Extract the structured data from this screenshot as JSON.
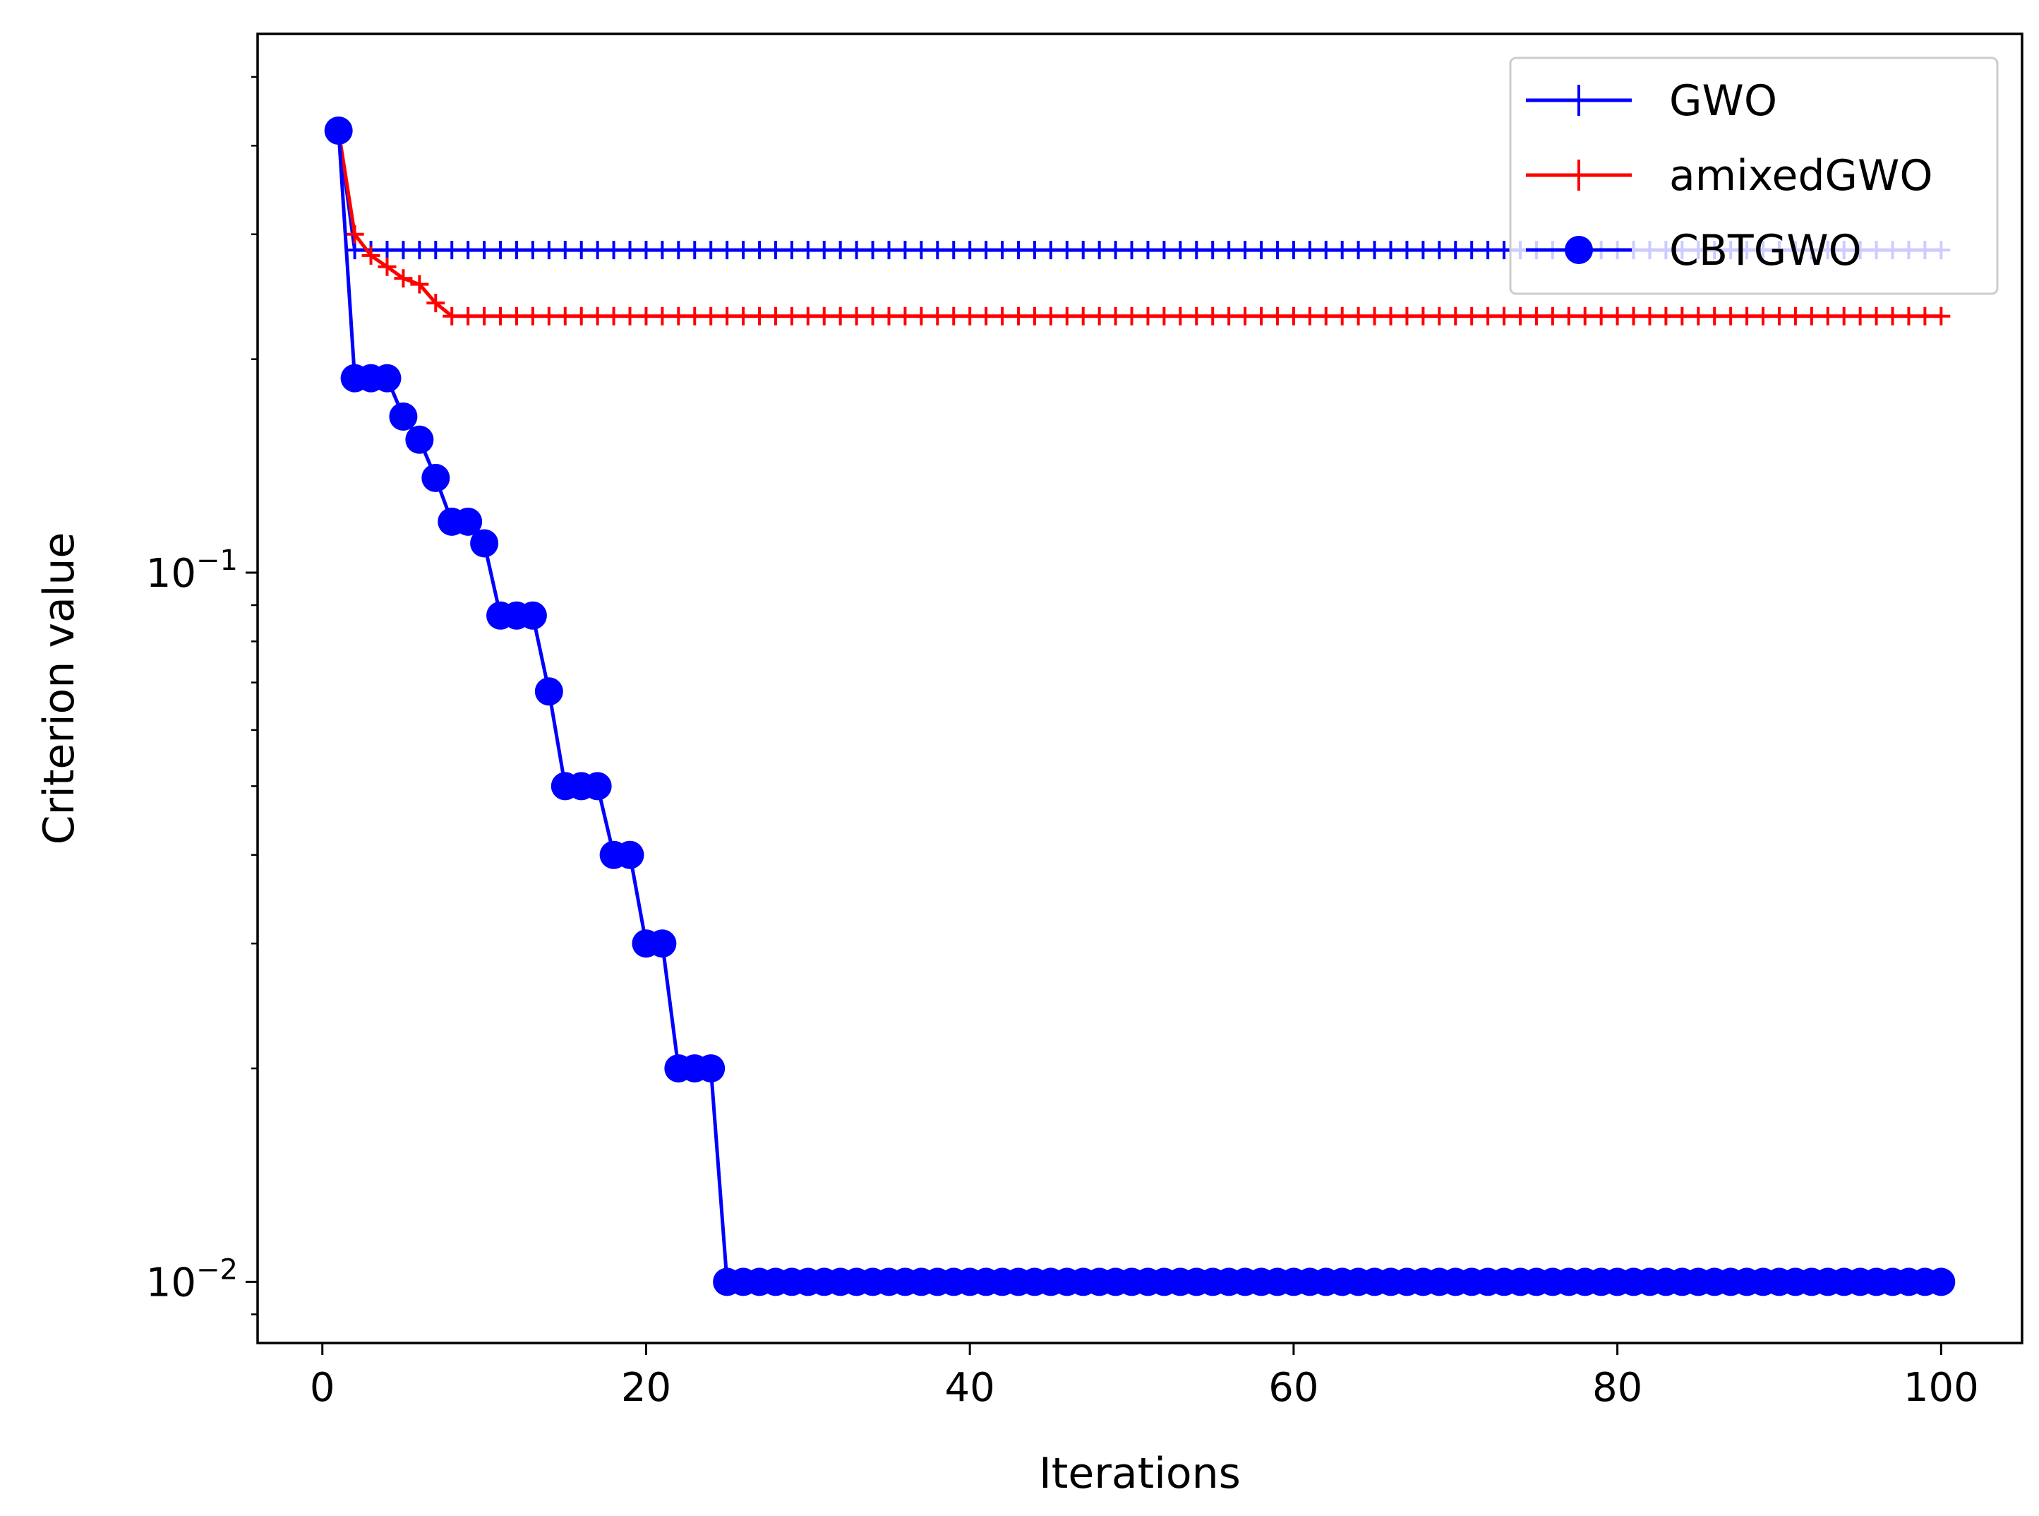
{
  "chart_data": {
    "type": "line",
    "title": "",
    "xlabel": "Iterations",
    "ylabel": "Criterion value",
    "yscale": "log",
    "xlim": [
      -4,
      105
    ],
    "ylim": [
      0.0082,
      0.575
    ],
    "xticks": [
      0,
      20,
      40,
      60,
      80,
      100
    ],
    "xtick_labels": [
      "0",
      "20",
      "40",
      "60",
      "80",
      "100"
    ],
    "yticks": [
      0.1,
      0.01
    ],
    "ytick_labels": [
      {
        "base": "10",
        "exp": "−1"
      },
      {
        "base": "10",
        "exp": "−2"
      }
    ],
    "legend_position": "top-right",
    "grid": false,
    "series": [
      {
        "name": "GWO",
        "color": "#0000ff",
        "marker": "plus",
        "steps": [
          [
            1,
            0.42
          ],
          [
            2,
            0.285
          ]
        ]
      },
      {
        "name": "amixedGWO",
        "color": "#ff0000",
        "marker": "plus",
        "steps": [
          [
            1,
            0.42
          ],
          [
            2,
            0.3
          ],
          [
            3,
            0.28
          ],
          [
            4,
            0.27
          ],
          [
            5,
            0.26
          ],
          [
            6,
            0.255
          ],
          [
            7,
            0.24
          ],
          [
            8,
            0.23
          ]
        ]
      },
      {
        "name": "CBTGWO",
        "color": "#0000ff",
        "marker": "circle",
        "steps": [
          [
            1,
            0.42
          ],
          [
            2,
            0.188
          ],
          [
            5,
            0.166
          ],
          [
            6,
            0.154
          ],
          [
            7,
            0.136
          ],
          [
            8,
            0.118
          ],
          [
            10,
            0.11
          ],
          [
            11,
            0.087
          ],
          [
            14,
            0.068
          ],
          [
            15,
            0.05
          ],
          [
            18,
            0.04
          ],
          [
            20,
            0.03
          ],
          [
            22,
            0.02
          ],
          [
            25,
            0.01
          ]
        ]
      }
    ],
    "n_iterations": 100
  }
}
